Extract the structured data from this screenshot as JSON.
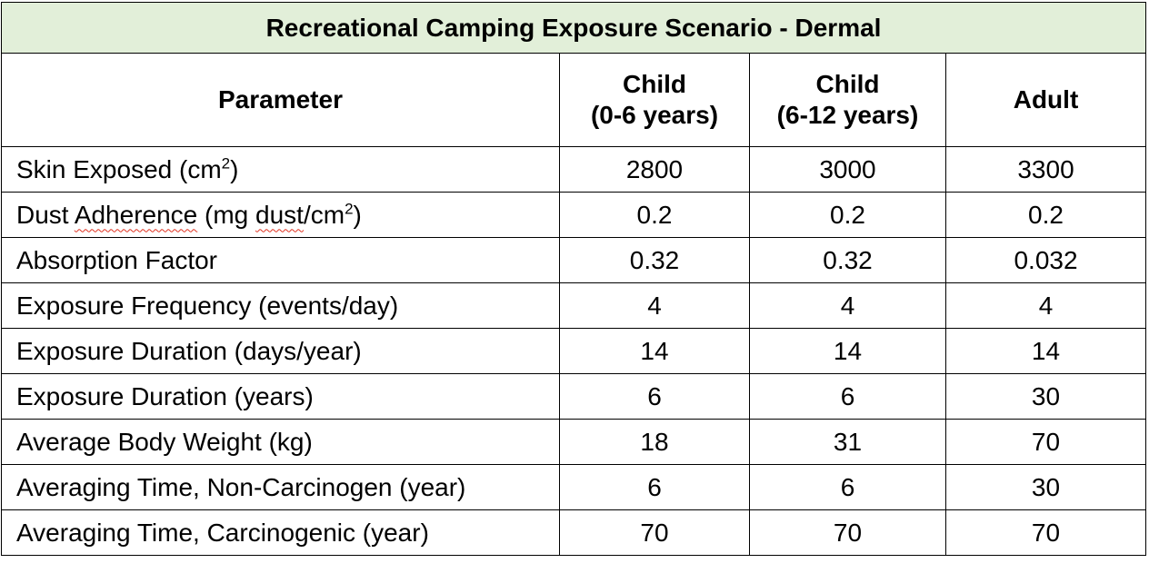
{
  "table": {
    "title": "Recreational Camping Exposure Scenario - Dermal",
    "headers": {
      "parameter": "Parameter",
      "child1_line1": "Child",
      "child1_line2": "(0-6 years)",
      "child2_line1": "Child",
      "child2_line2": "(6-12 years)",
      "adult": "Adult"
    },
    "rows": [
      {
        "p_pre": "Skin Exposed (cm",
        "p_sup": "2",
        "p_post": ")",
        "child1": "2800",
        "child2": "3000",
        "adult": "3300"
      },
      {
        "p_pre": "Dust ",
        "p_sq1": "Adherence",
        "p_mid": " (mg ",
        "p_sq2": "dust",
        "p_mid2": "/cm",
        "p_sup": "2",
        "p_post": ")",
        "child1": "0.2",
        "child2": "0.2",
        "adult": "0.2"
      },
      {
        "p_text": "Absorption Factor",
        "child1": "0.32",
        "child2": "0.32",
        "adult": "0.032"
      },
      {
        "p_text": "Exposure Frequency (events/day)",
        "child1": "4",
        "child2": "4",
        "adult": "4"
      },
      {
        "p_text": "Exposure Duration (days/year)",
        "child1": "14",
        "child2": "14",
        "adult": "14"
      },
      {
        "p_text": "Exposure Duration (years)",
        "child1": "6",
        "child2": "6",
        "adult": "30"
      },
      {
        "p_text": "Average Body Weight (kg)",
        "child1": "18",
        "child2": "31",
        "adult": "70"
      },
      {
        "p_text": "Averaging Time, Non-Carcinogen (year)",
        "child1": "6",
        "child2": "6",
        "adult": "30"
      },
      {
        "p_text": "Averaging Time, Carcinogenic (year)",
        "child1": "70",
        "child2": "70",
        "adult": "70"
      }
    ]
  }
}
